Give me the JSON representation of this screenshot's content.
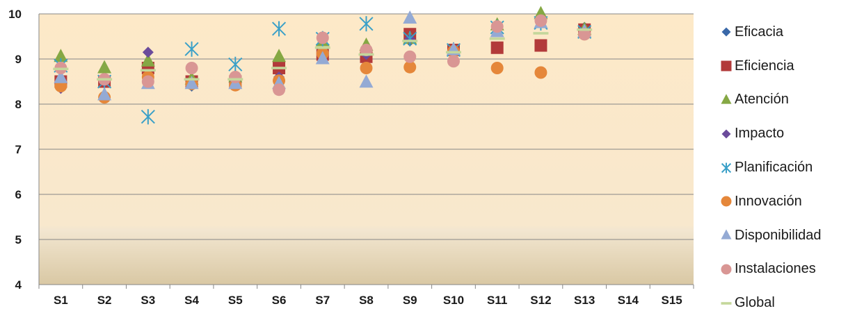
{
  "chart_data": {
    "type": "scatter",
    "categories": [
      "S1",
      "S2",
      "S3",
      "S4",
      "S5",
      "S6",
      "S7",
      "S8",
      "S9",
      "S10",
      "S11",
      "S12",
      "S13",
      "S14",
      "S15"
    ],
    "ylim": [
      4,
      10
    ],
    "yticks": [
      "4",
      "5",
      "6",
      "7",
      "8",
      "9",
      "10"
    ],
    "grid": true,
    "legend_position": "right",
    "series": [
      {
        "name": "Eficacia",
        "marker": "diamond",
        "color": "#3a68a8",
        "values": [
          8.8,
          8.5,
          8.8,
          8.4,
          8.5,
          8.7,
          9.1,
          9.2,
          9.4,
          9.2,
          9.65,
          9.8,
          9.7,
          null,
          null
        ]
      },
      {
        "name": "Eficiencia",
        "marker": "square",
        "color": "#b23a3a",
        "values": [
          8.5,
          8.5,
          8.8,
          8.5,
          8.5,
          8.8,
          9.1,
          9.05,
          9.55,
          9.2,
          9.25,
          9.3,
          9.65,
          null,
          null
        ]
      },
      {
        "name": "Atención",
        "marker": "triangle",
        "color": "#85a844",
        "values": [
          9.05,
          8.8,
          8.95,
          8.55,
          8.6,
          9.05,
          9.4,
          9.3,
          9.45,
          9.2,
          9.75,
          10.0,
          9.65,
          null,
          null
        ]
      },
      {
        "name": "Impacto",
        "marker": "diamond",
        "color": "#6b4b9b",
        "values": [
          8.35,
          8.5,
          9.15,
          8.45,
          8.5,
          8.6,
          9.1,
          9.1,
          9.45,
          9.2,
          9.7,
          9.8,
          9.6,
          null,
          null
        ]
      },
      {
        "name": "Planificación",
        "marker": "asterisk",
        "color": "#3aa0c8",
        "values": [
          8.85,
          8.5,
          7.72,
          9.22,
          8.88,
          9.67,
          9.45,
          9.78,
          9.45,
          9.2,
          9.7,
          9.8,
          9.6,
          null,
          null
        ]
      },
      {
        "name": "Innovación",
        "marker": "circle",
        "color": "#e5873a",
        "values": [
          8.4,
          8.15,
          8.6,
          8.45,
          8.42,
          8.52,
          9.12,
          8.8,
          8.82,
          9.17,
          8.8,
          8.7,
          9.55,
          null,
          null
        ]
      },
      {
        "name": "Disponibilidad",
        "marker": "triangle",
        "color": "#94aad4",
        "values": [
          8.58,
          8.2,
          8.45,
          8.45,
          8.45,
          8.45,
          9.0,
          8.48,
          9.9,
          9.2,
          9.6,
          9.8,
          9.6,
          null,
          null
        ]
      },
      {
        "name": "Instalaciones",
        "marker": "circle",
        "color": "#d99694",
        "values": [
          8.8,
          8.55,
          8.5,
          8.8,
          8.6,
          8.32,
          9.47,
          9.2,
          9.05,
          8.95,
          9.72,
          9.85,
          9.55,
          null,
          null
        ]
      },
      {
        "name": "Global",
        "marker": "dash",
        "color": "#c4d79b",
        "values": [
          8.78,
          8.55,
          8.75,
          8.55,
          8.55,
          8.8,
          9.25,
          9.1,
          9.4,
          9.15,
          9.45,
          9.57,
          9.65,
          null,
          null
        ]
      }
    ]
  }
}
